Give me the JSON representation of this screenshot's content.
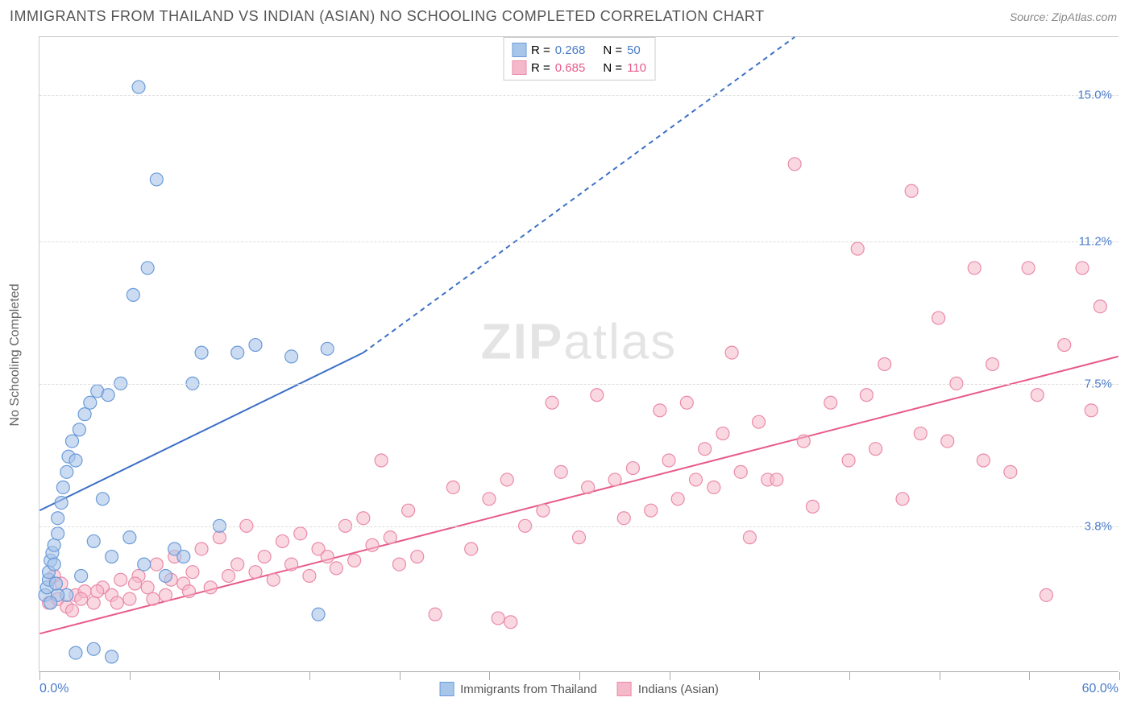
{
  "header": {
    "title": "IMMIGRANTS FROM THAILAND VS INDIAN (ASIAN) NO SCHOOLING COMPLETED CORRELATION CHART",
    "source": "Source: ZipAtlas.com"
  },
  "chart": {
    "type": "scatter",
    "y_axis_label": "No Schooling Completed",
    "watermark": "ZIPatlas",
    "x_domain": [
      0,
      60
    ],
    "y_domain": [
      0,
      16.5
    ],
    "x_range_label_min": "0.0%",
    "x_range_label_max": "60.0%",
    "x_tick_positions": [
      0,
      5,
      10,
      15,
      20,
      25,
      30,
      35,
      40,
      45,
      50,
      55,
      60
    ],
    "y_gridlines": [
      {
        "value": 3.8,
        "label": "3.8%"
      },
      {
        "value": 7.5,
        "label": "7.5%"
      },
      {
        "value": 11.2,
        "label": "11.2%"
      },
      {
        "value": 15.0,
        "label": "15.0%"
      }
    ],
    "grid_color": "#dddddd",
    "series": [
      {
        "name": "Immigrants from Thailand",
        "label_color": "#4a7cc9",
        "marker_fill": "#a8c5ea",
        "marker_stroke": "#6b9bd8",
        "marker_opacity": 0.6,
        "marker_radius": 8,
        "R": "0.268",
        "N": "50",
        "trend_line": {
          "x1": 0,
          "y1": 4.2,
          "x2_solid": 18,
          "y2_solid": 8.3,
          "x2_dash": 42,
          "y2_dash": 16.5,
          "color": "#3b6fc7",
          "width": 2
        },
        "points": [
          [
            0.3,
            2.0
          ],
          [
            0.4,
            2.2
          ],
          [
            0.5,
            2.4
          ],
          [
            0.5,
            2.6
          ],
          [
            0.6,
            2.9
          ],
          [
            0.7,
            3.1
          ],
          [
            0.8,
            3.3
          ],
          [
            0.8,
            2.8
          ],
          [
            1.0,
            3.6
          ],
          [
            1.0,
            4.0
          ],
          [
            1.2,
            4.4
          ],
          [
            1.3,
            4.8
          ],
          [
            1.5,
            5.2
          ],
          [
            1.6,
            5.6
          ],
          [
            1.8,
            6.0
          ],
          [
            2.0,
            5.5
          ],
          [
            2.2,
            6.3
          ],
          [
            2.5,
            6.7
          ],
          [
            2.8,
            7.0
          ],
          [
            3.0,
            3.4
          ],
          [
            3.2,
            7.3
          ],
          [
            3.5,
            4.5
          ],
          [
            3.8,
            7.2
          ],
          [
            4.0,
            3.0
          ],
          [
            4.5,
            7.5
          ],
          [
            5.0,
            3.5
          ],
          [
            5.2,
            9.8
          ],
          [
            5.5,
            15.2
          ],
          [
            5.8,
            2.8
          ],
          [
            6.0,
            10.5
          ],
          [
            6.5,
            12.8
          ],
          [
            7.0,
            2.5
          ],
          [
            7.5,
            3.2
          ],
          [
            8.0,
            3.0
          ],
          [
            8.5,
            7.5
          ],
          [
            9.0,
            8.3
          ],
          [
            10.0,
            3.8
          ],
          [
            11.0,
            8.3
          ],
          [
            12.0,
            8.5
          ],
          [
            14.0,
            8.2
          ],
          [
            16.0,
            8.4
          ],
          [
            2.0,
            0.5
          ],
          [
            3.0,
            0.6
          ],
          [
            4.0,
            0.4
          ],
          [
            1.5,
            2.0
          ],
          [
            2.3,
            2.5
          ],
          [
            1.0,
            2.0
          ],
          [
            0.9,
            2.3
          ],
          [
            0.6,
            1.8
          ],
          [
            15.5,
            1.5
          ]
        ]
      },
      {
        "name": "Indians (Asian)",
        "label_color": "#e85a8a",
        "marker_fill": "#f5b8ca",
        "marker_stroke": "#ea8aa8",
        "marker_opacity": 0.55,
        "marker_radius": 8,
        "R": "0.685",
        "N": "110",
        "trend_line": {
          "x1": 0,
          "y1": 1.0,
          "x2_solid": 60,
          "y2_solid": 8.2,
          "color": "#e85a8a",
          "width": 2
        },
        "points": [
          [
            0.5,
            1.8
          ],
          [
            1.0,
            1.9
          ],
          [
            1.5,
            1.7
          ],
          [
            2.0,
            2.0
          ],
          [
            2.5,
            2.1
          ],
          [
            3.0,
            1.8
          ],
          [
            3.5,
            2.2
          ],
          [
            4.0,
            2.0
          ],
          [
            4.5,
            2.4
          ],
          [
            5.0,
            1.9
          ],
          [
            5.5,
            2.5
          ],
          [
            6.0,
            2.2
          ],
          [
            6.5,
            2.8
          ],
          [
            7.0,
            2.0
          ],
          [
            7.5,
            3.0
          ],
          [
            8.0,
            2.3
          ],
          [
            8.5,
            2.6
          ],
          [
            9.0,
            3.2
          ],
          [
            9.5,
            2.2
          ],
          [
            10.0,
            3.5
          ],
          [
            10.5,
            2.5
          ],
          [
            11.0,
            2.8
          ],
          [
            11.5,
            3.8
          ],
          [
            12.0,
            2.6
          ],
          [
            12.5,
            3.0
          ],
          [
            13.0,
            2.4
          ],
          [
            13.5,
            3.4
          ],
          [
            14.0,
            2.8
          ],
          [
            14.5,
            3.6
          ],
          [
            15.0,
            2.5
          ],
          [
            15.5,
            3.2
          ],
          [
            16.0,
            3.0
          ],
          [
            16.5,
            2.7
          ],
          [
            17.0,
            3.8
          ],
          [
            17.5,
            2.9
          ],
          [
            18.0,
            4.0
          ],
          [
            18.5,
            3.3
          ],
          [
            19.0,
            5.5
          ],
          [
            19.5,
            3.5
          ],
          [
            20.0,
            2.8
          ],
          [
            20.5,
            4.2
          ],
          [
            21.0,
            3.0
          ],
          [
            22.0,
            1.5
          ],
          [
            23.0,
            4.8
          ],
          [
            24.0,
            3.2
          ],
          [
            25.0,
            4.5
          ],
          [
            25.5,
            1.4
          ],
          [
            26.0,
            5.0
          ],
          [
            26.2,
            1.3
          ],
          [
            27.0,
            3.8
          ],
          [
            28.0,
            4.2
          ],
          [
            28.5,
            7.0
          ],
          [
            29.0,
            5.2
          ],
          [
            30.0,
            3.5
          ],
          [
            30.5,
            4.8
          ],
          [
            31.0,
            7.2
          ],
          [
            32.0,
            5.0
          ],
          [
            32.5,
            4.0
          ],
          [
            33.0,
            5.3
          ],
          [
            34.0,
            4.2
          ],
          [
            34.5,
            6.8
          ],
          [
            35.0,
            5.5
          ],
          [
            35.5,
            4.5
          ],
          [
            36.0,
            7.0
          ],
          [
            36.5,
            5.0
          ],
          [
            37.0,
            5.8
          ],
          [
            37.5,
            4.8
          ],
          [
            38.0,
            6.2
          ],
          [
            38.5,
            8.3
          ],
          [
            39.0,
            5.2
          ],
          [
            39.5,
            3.5
          ],
          [
            40.0,
            6.5
          ],
          [
            40.5,
            5.0
          ],
          [
            41.0,
            5.0
          ],
          [
            42.0,
            13.2
          ],
          [
            42.5,
            6.0
          ],
          [
            43.0,
            4.3
          ],
          [
            44.0,
            7.0
          ],
          [
            45.0,
            5.5
          ],
          [
            45.5,
            11.0
          ],
          [
            46.0,
            7.2
          ],
          [
            46.5,
            5.8
          ],
          [
            47.0,
            8.0
          ],
          [
            48.0,
            4.5
          ],
          [
            48.5,
            12.5
          ],
          [
            49.0,
            6.2
          ],
          [
            50.0,
            9.2
          ],
          [
            50.5,
            6.0
          ],
          [
            51.0,
            7.5
          ],
          [
            52.0,
            10.5
          ],
          [
            52.5,
            5.5
          ],
          [
            53.0,
            8.0
          ],
          [
            54.0,
            5.2
          ],
          [
            55.0,
            10.5
          ],
          [
            55.5,
            7.2
          ],
          [
            56.0,
            2.0
          ],
          [
            57.0,
            8.5
          ],
          [
            58.0,
            10.5
          ],
          [
            58.5,
            6.8
          ],
          [
            59.0,
            9.5
          ],
          [
            0.8,
            2.5
          ],
          [
            1.2,
            2.3
          ],
          [
            1.8,
            1.6
          ],
          [
            2.3,
            1.9
          ],
          [
            3.2,
            2.1
          ],
          [
            4.3,
            1.8
          ],
          [
            5.3,
            2.3
          ],
          [
            6.3,
            1.9
          ],
          [
            7.3,
            2.4
          ],
          [
            8.3,
            2.1
          ]
        ]
      }
    ]
  },
  "legend_top": {
    "R_label": "R =",
    "N_label": "N ="
  },
  "legend_bottom": {
    "series1_label": "Immigrants from Thailand",
    "series2_label": "Indians (Asian)"
  }
}
